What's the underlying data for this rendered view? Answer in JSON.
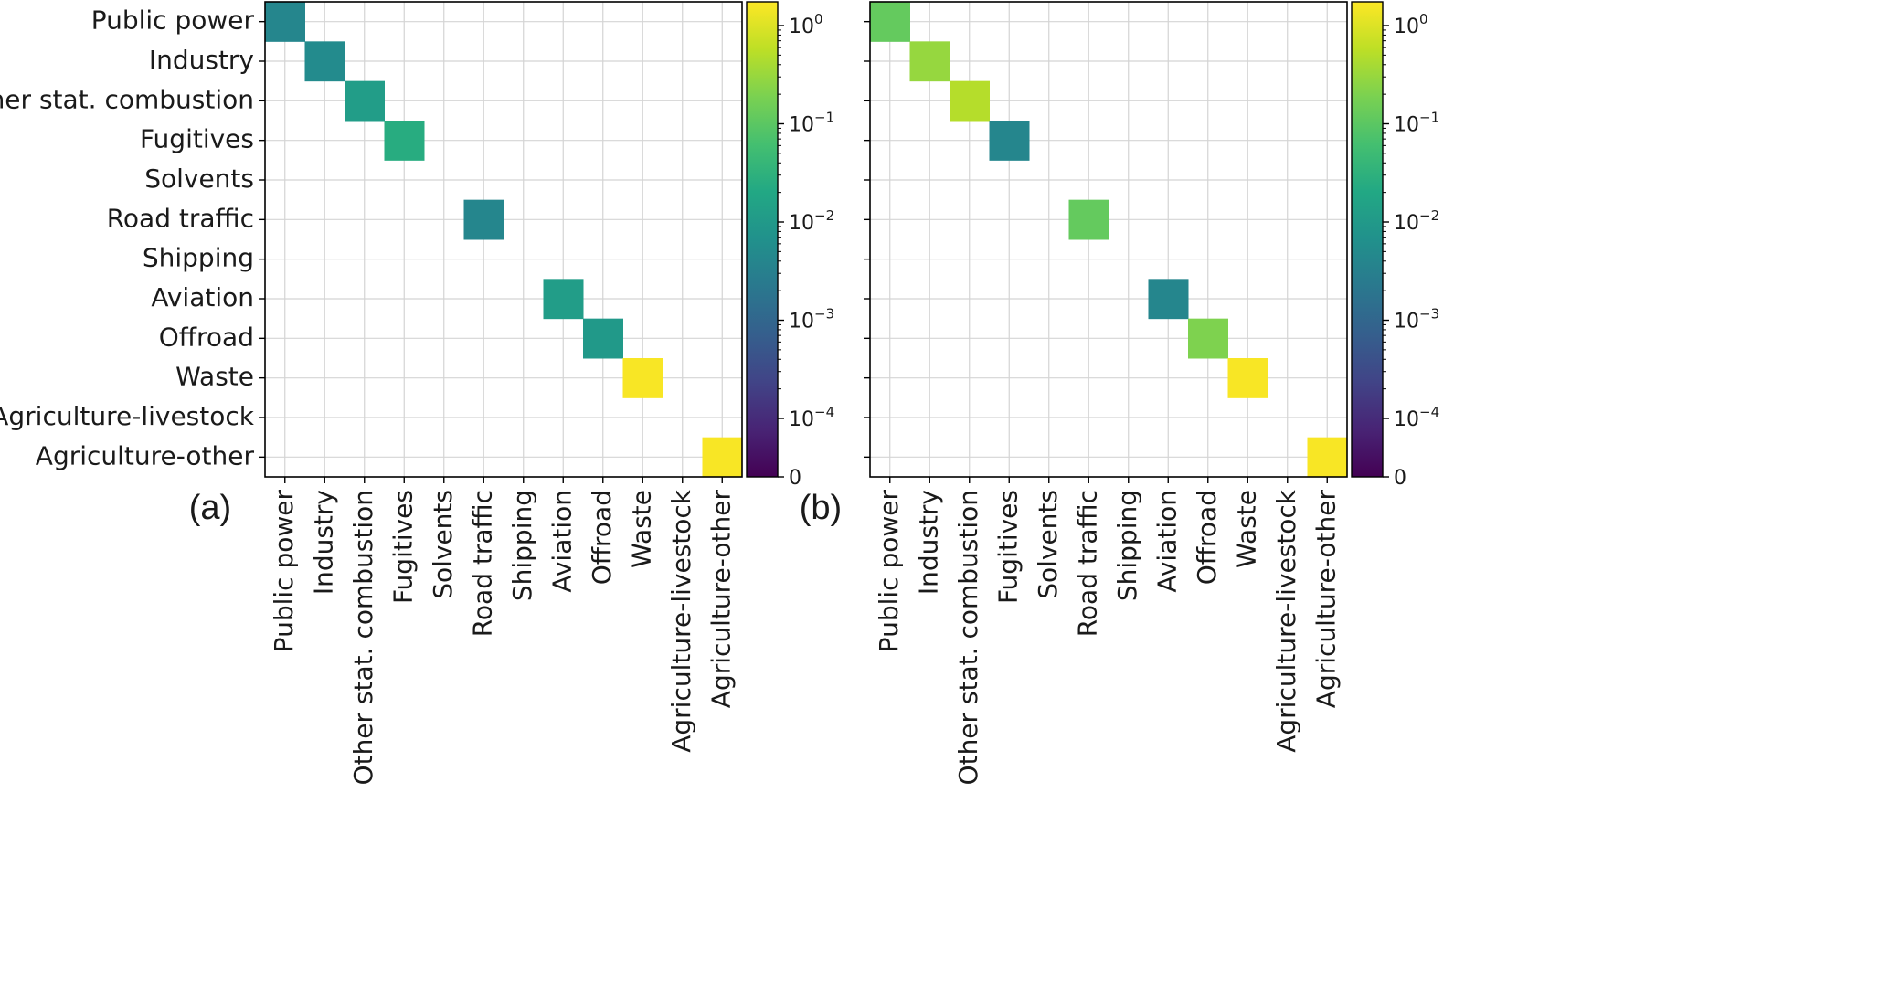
{
  "chart_data": [
    {
      "type": "heatmap",
      "panel_label": "(a)",
      "title": "",
      "categories": [
        "Public power",
        "Industry",
        "Other stat. combustion",
        "Fugitives",
        "Solvents",
        "Road traffic",
        "Shipping",
        "Aviation",
        "Offroad",
        "Waste",
        "Agriculture-livestock",
        "Agriculture-other"
      ],
      "scale": "log",
      "colormap": "viridis",
      "grid": true,
      "diagonal_values": [
        0.004,
        0.005,
        0.012,
        0.025,
        null,
        0.004,
        null,
        0.012,
        0.01,
        1.6,
        null,
        1.6
      ],
      "colorbar": {
        "ticks": [
          {
            "value": 1,
            "base": "10",
            "exp": "0"
          },
          {
            "value": 0.1,
            "base": "10",
            "exp": "−1"
          },
          {
            "value": 0.01,
            "base": "10",
            "exp": "−2"
          },
          {
            "value": 0.001,
            "base": "10",
            "exp": "−3"
          },
          {
            "value": 0.0001,
            "base": "10",
            "exp": "−4"
          },
          {
            "value": 0,
            "base": "0",
            "exp": ""
          }
        ]
      }
    },
    {
      "type": "heatmap",
      "panel_label": "(b)",
      "title": "",
      "categories": [
        "Public power",
        "Industry",
        "Other stat. combustion",
        "Fugitives",
        "Solvents",
        "Road traffic",
        "Shipping",
        "Aviation",
        "Offroad",
        "Waste",
        "Agriculture-livestock",
        "Agriculture-other"
      ],
      "scale": "log",
      "colormap": "viridis",
      "grid": true,
      "diagonal_values": [
        0.12,
        0.3,
        0.5,
        0.004,
        null,
        0.12,
        null,
        0.004,
        0.2,
        1.6,
        null,
        1.6
      ],
      "colorbar": {
        "ticks": [
          {
            "value": 1,
            "base": "10",
            "exp": "0"
          },
          {
            "value": 0.1,
            "base": "10",
            "exp": "−1"
          },
          {
            "value": 0.01,
            "base": "10",
            "exp": "−2"
          },
          {
            "value": 0.001,
            "base": "10",
            "exp": "−3"
          },
          {
            "value": 0.0001,
            "base": "10",
            "exp": "−4"
          },
          {
            "value": 0,
            "base": "0",
            "exp": ""
          }
        ]
      }
    }
  ]
}
